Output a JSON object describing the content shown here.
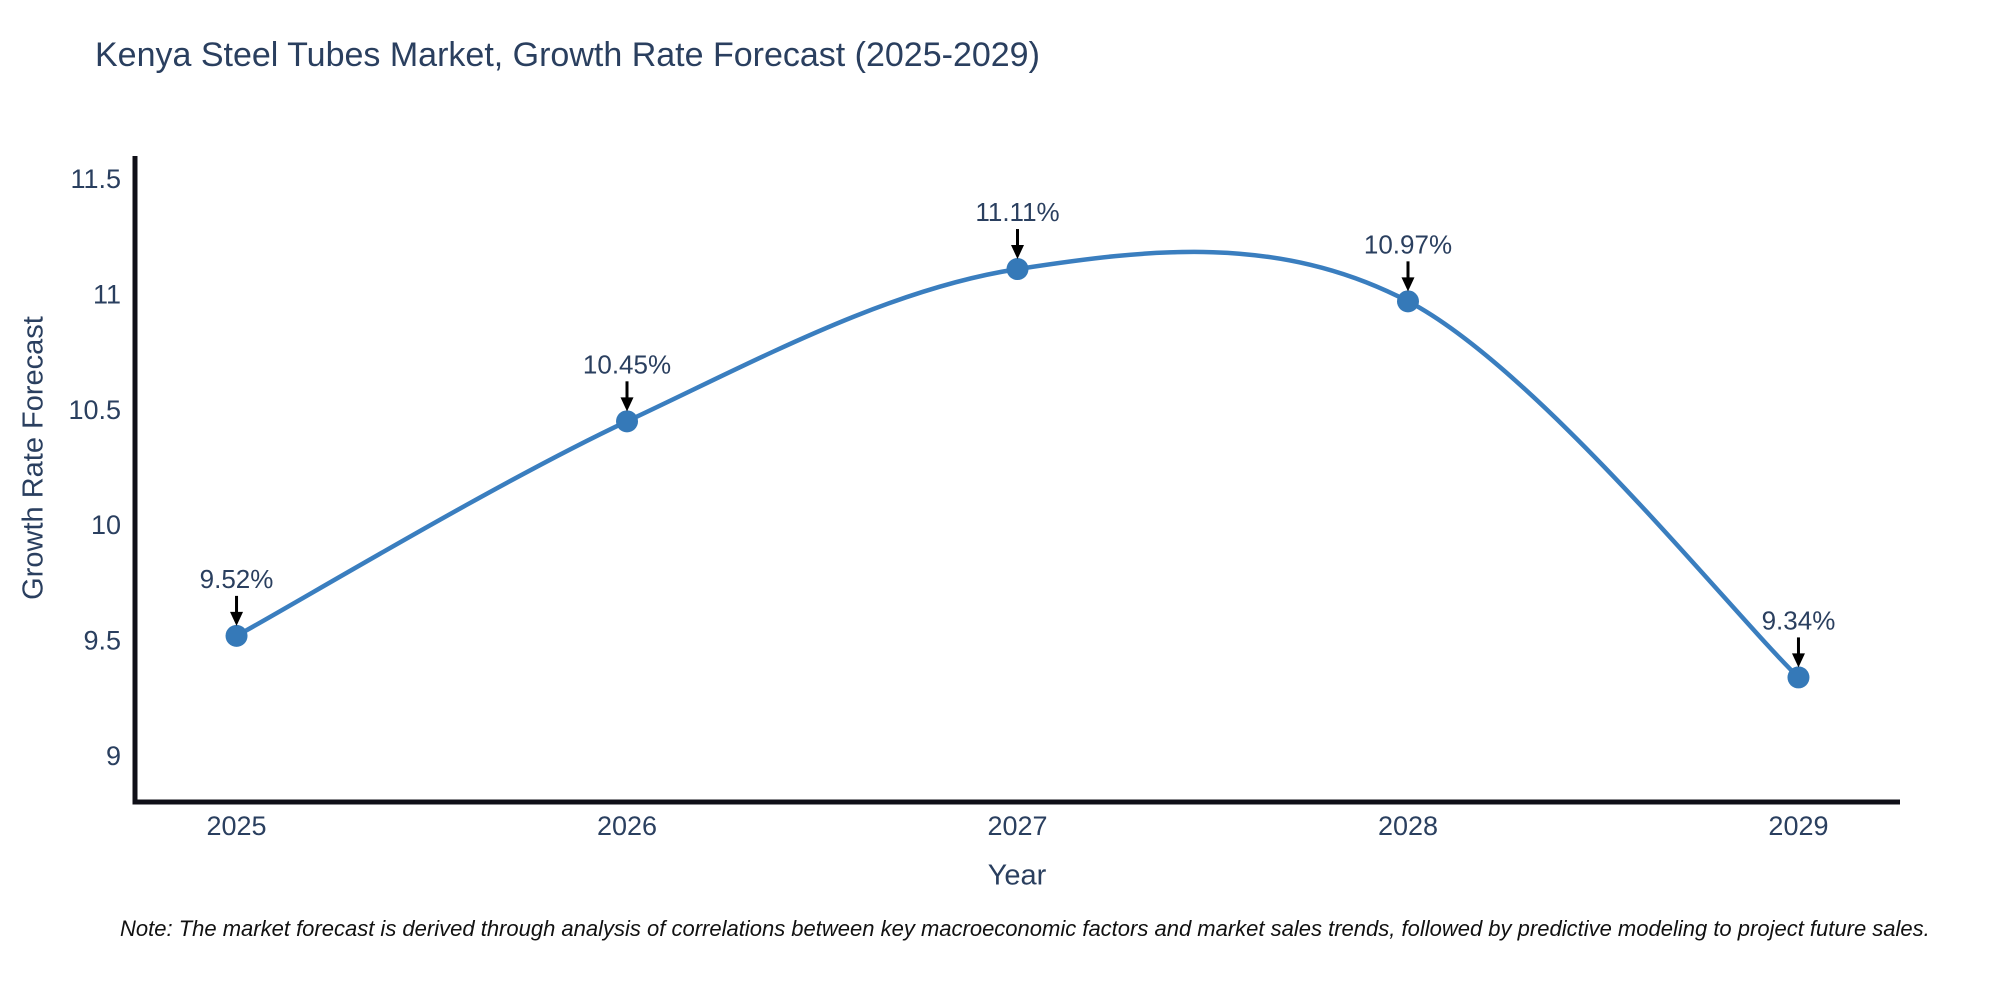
{
  "page": {
    "title": "Kenya Steel Tubes Market, Growth Rate Forecast (2025-2029)",
    "note": "Note: The market forecast is derived through analysis of correlations between key macroeconomic factors and market sales trends, followed by predictive modeling to project future sales."
  },
  "colors": {
    "title_text": "#2a3f5f",
    "axis_text": "#2a3f5f",
    "line": "#3a7ebf",
    "marker": "#3579b8",
    "axis_line": "#101018",
    "annotation_arrow": "#000000",
    "note_text": "#111111",
    "background": "#ffffff"
  },
  "chart_data": {
    "type": "line",
    "title": "Kenya Steel Tubes Market, Growth Rate Forecast (2025-2029)",
    "xlabel": "Year",
    "ylabel": "Growth Rate Forecast",
    "x": [
      2025,
      2026,
      2027,
      2028,
      2029
    ],
    "series": [
      {
        "name": "Growth Rate Forecast",
        "values": [
          9.52,
          10.45,
          11.11,
          10.97,
          9.34
        ]
      }
    ],
    "point_labels": [
      "9.52%",
      "10.45%",
      "11.11%",
      "10.97%",
      "9.34%"
    ],
    "xticks": [
      "2025",
      "2026",
      "2027",
      "2028",
      "2029"
    ],
    "yticks": [
      "9",
      "9.5",
      "10",
      "10.5",
      "11",
      "11.5"
    ],
    "ytick_values": [
      9,
      9.5,
      10,
      10.5,
      11,
      11.5
    ],
    "xlim": [
      2024.74,
      2029.26
    ],
    "ylim": [
      8.8,
      11.6
    ],
    "grid": false,
    "legend": false,
    "line_shape": "spline",
    "annotations": "black down-arrows from each percentage label to its data point"
  }
}
